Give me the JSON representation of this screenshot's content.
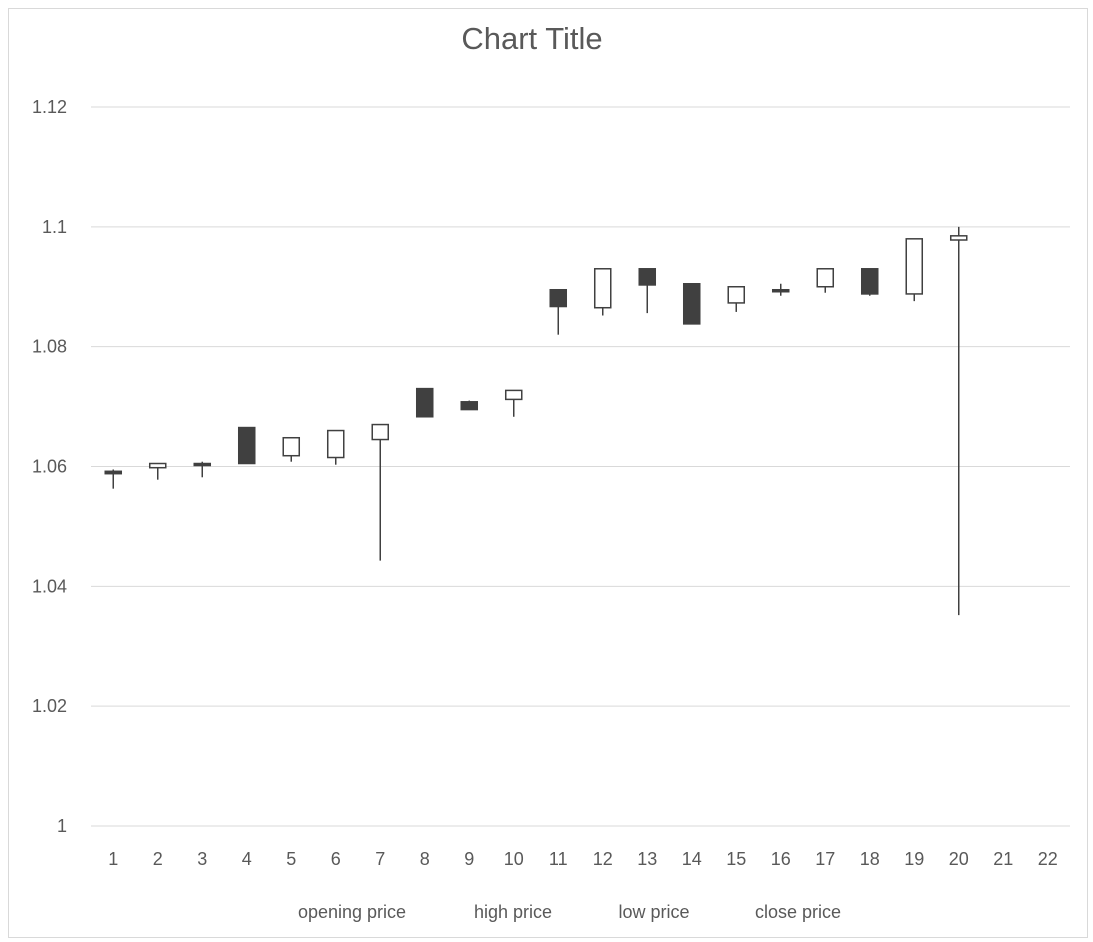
{
  "chart_data": {
    "type": "candlestick",
    "title": "Chart Title",
    "ylim": [
      1,
      1.12
    ],
    "yticks": [
      1,
      1.02,
      1.04,
      1.06,
      1.08,
      1.1,
      1.12
    ],
    "ytick_labels": [
      "1",
      "1.02",
      "1.04",
      "1.06",
      "1.08",
      "1.1",
      "1.12"
    ],
    "categories": [
      "1",
      "2",
      "3",
      "4",
      "5",
      "6",
      "7",
      "8",
      "9",
      "10",
      "11",
      "12",
      "13",
      "14",
      "15",
      "16",
      "17",
      "18",
      "19",
      "20",
      "21",
      "22"
    ],
    "grid": true,
    "legend_position": "bottom",
    "legend": [
      "opening price",
      "high price",
      "low price",
      "close price"
    ],
    "colors": {
      "up_fill": "#ffffff",
      "down_fill": "#404040",
      "line": "#404040",
      "grid": "#d9d9d9",
      "text": "#595959"
    },
    "series": [
      {
        "name": "opening price",
        "values": [
          1.0592,
          1.0598,
          1.0605,
          1.0665,
          1.0618,
          1.0615,
          1.0645,
          1.073,
          1.0708,
          1.0712,
          1.0895,
          1.0865,
          1.093,
          1.0905,
          1.0873,
          1.0895,
          1.09,
          1.093,
          1.0888,
          1.0978,
          null,
          null
        ]
      },
      {
        "name": "high price",
        "values": [
          1.0595,
          1.0605,
          1.0608,
          1.0665,
          1.0648,
          1.066,
          1.067,
          1.073,
          1.071,
          1.0727,
          1.0895,
          1.093,
          1.093,
          1.0905,
          1.09,
          1.0905,
          1.093,
          1.093,
          1.098,
          1.1,
          null,
          null
        ]
      },
      {
        "name": "low price",
        "values": [
          1.0563,
          1.0578,
          1.0582,
          1.0605,
          1.0608,
          1.0603,
          1.0443,
          1.0683,
          1.0695,
          1.0683,
          1.082,
          1.0852,
          1.0856,
          1.0838,
          1.0858,
          1.0885,
          1.089,
          1.0885,
          1.0876,
          1.0352,
          null,
          null
        ]
      },
      {
        "name": "close price",
        "values": [
          1.0588,
          1.0605,
          1.0603,
          1.0605,
          1.0648,
          1.066,
          1.067,
          1.0683,
          1.0695,
          1.0727,
          1.0867,
          1.093,
          1.0903,
          1.0838,
          1.09,
          1.0893,
          1.093,
          1.0888,
          1.098,
          1.0985,
          null,
          null
        ]
      }
    ]
  }
}
